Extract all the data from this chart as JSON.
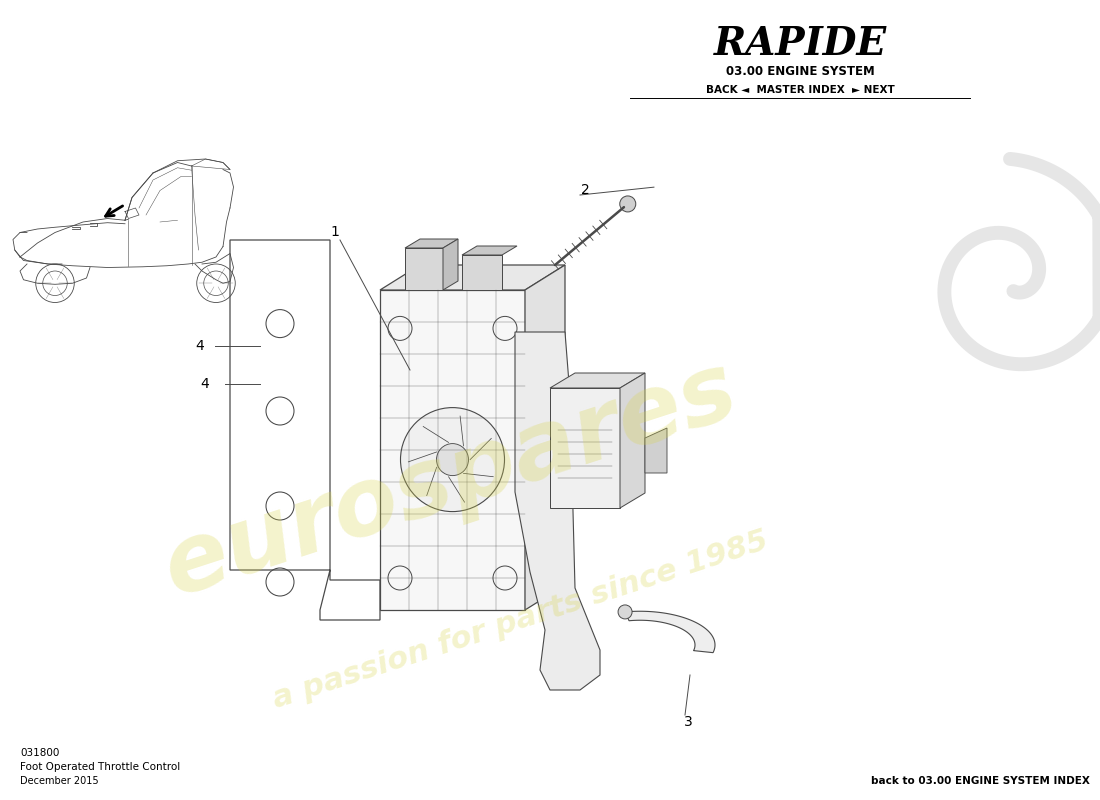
{
  "title": "RAPIDE",
  "subtitle": "03.00 ENGINE SYSTEM",
  "nav_text": "BACK ◄  MASTER INDEX  ► NEXT",
  "part_number": "031800",
  "part_name": "Foot Operated Throttle Control",
  "date": "December 2015",
  "back_link": "back to 03.00 ENGINE SYSTEM INDEX",
  "watermark_line1": "eurospares",
  "watermark_line2": "a passion for parts since 1985",
  "bg_color": "#ffffff",
  "line_color": "#4a4a4a",
  "watermark_color": "#d8d44a",
  "label_color": "#000000"
}
